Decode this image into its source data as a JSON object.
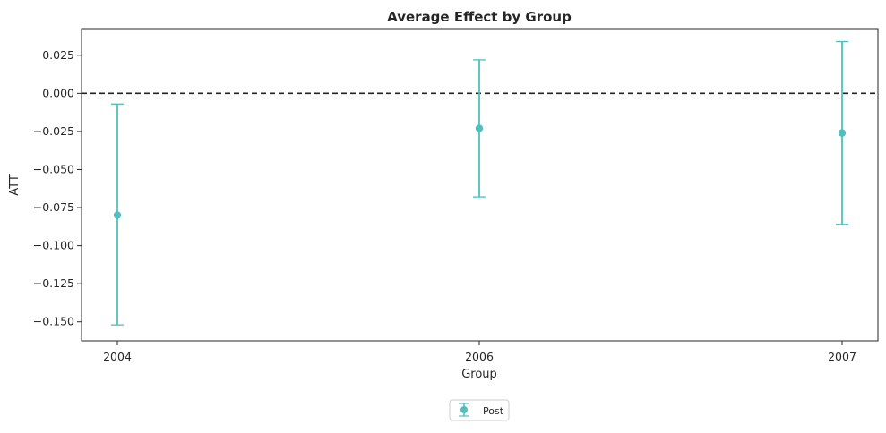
{
  "chart_data": {
    "type": "scatter",
    "title": "Average Effect by Group",
    "xlabel": "Group",
    "ylabel": "ATT",
    "categories": [
      "2004",
      "2006",
      "2007"
    ],
    "ylim": [
      -0.1625,
      0.0425
    ],
    "yticks": [
      0.025,
      0.0,
      -0.025,
      -0.05,
      -0.075,
      -0.1,
      -0.125,
      -0.15
    ],
    "ytick_labels": [
      "0.025",
      "0.000",
      "−0.025",
      "−0.050",
      "−0.075",
      "−0.100",
      "−0.125",
      "−0.150"
    ],
    "reference_line": {
      "y": 0,
      "style": "dashed",
      "color": "#222222"
    },
    "grid": false,
    "legend_position": "bottom-center",
    "series": [
      {
        "name": "Post",
        "color": "#4fbfbf",
        "marker": "circle",
        "values": [
          -0.08,
          -0.023,
          -0.026
        ],
        "ci_lower": [
          -0.152,
          -0.068,
          -0.086
        ],
        "ci_upper": [
          -0.007,
          0.022,
          0.034
        ]
      }
    ]
  }
}
